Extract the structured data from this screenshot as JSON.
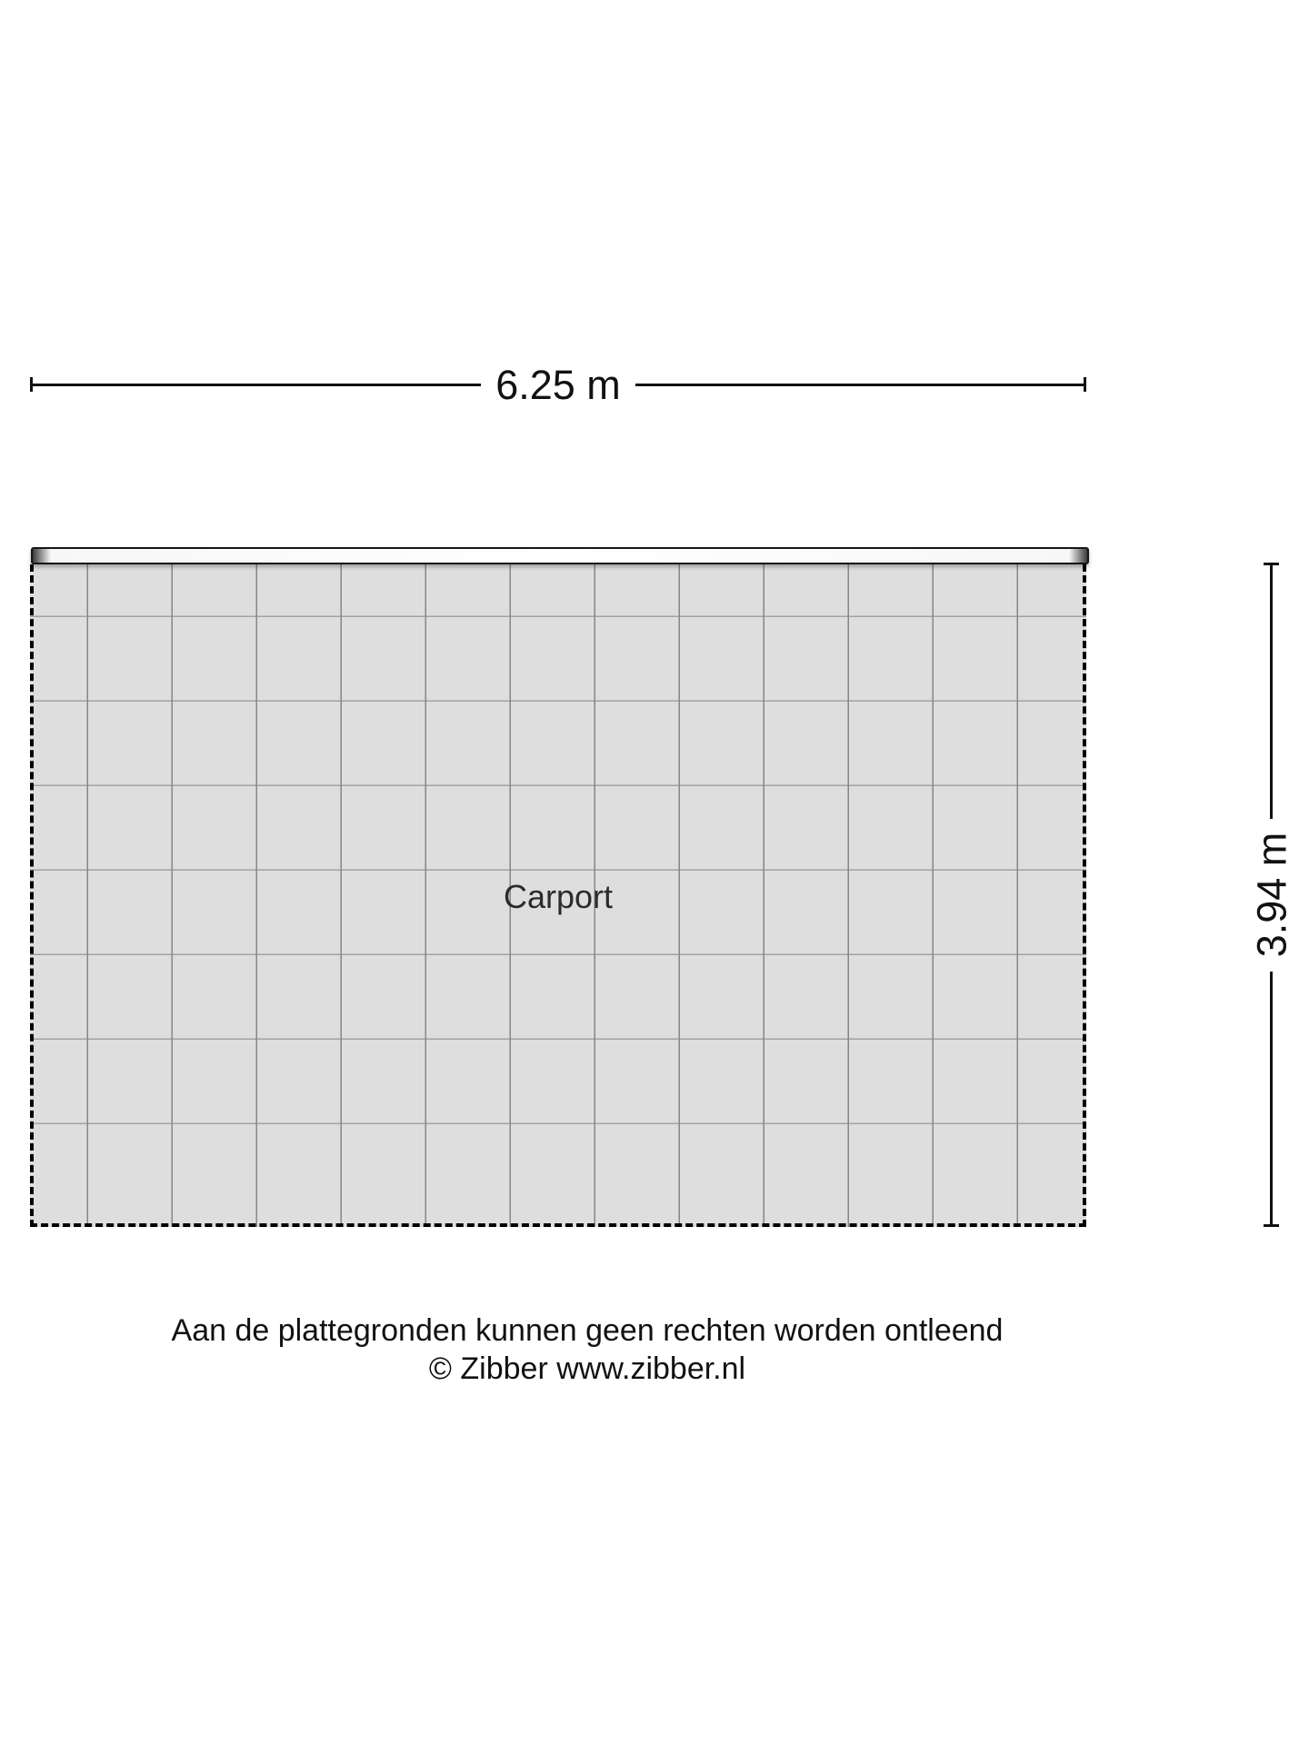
{
  "floorplan": {
    "room": {
      "label": "Carport"
    },
    "dimensions": {
      "width_label": "6.25 m",
      "height_label": "3.94 m"
    },
    "style": {
      "floor_fill": "#dedede",
      "grid_line_vertical": "#878787",
      "grid_line_horizontal": "#a2a2a2",
      "outline_color": "#000000",
      "wall_fill": "#ffffff"
    }
  },
  "footer": {
    "disclaimer": "Aan de plattegronden kunnen geen rechten worden ontleend",
    "copyright": "© Zibber www.zibber.nl"
  }
}
